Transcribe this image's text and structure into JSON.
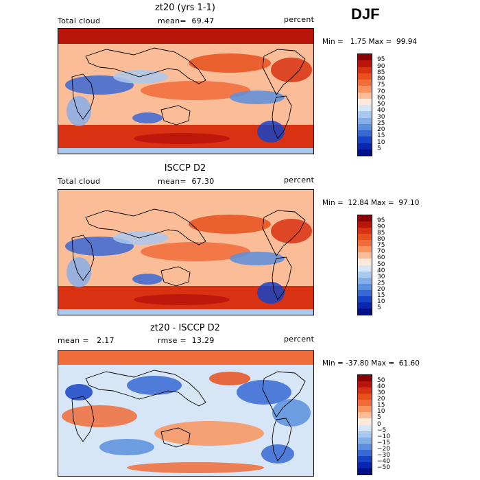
{
  "season": "DJF",
  "panels": [
    {
      "title": "zt20 (yrs 1-1)",
      "left_label": "Total cloud",
      "center_label": "mean=  69.47",
      "units": "percent",
      "minmax": "Min =   1.75 Max =  99.94",
      "colorbar": {
        "labels": [
          "95",
          "90",
          "85",
          "80",
          "75",
          "70",
          "60",
          "50",
          "40",
          "30",
          "25",
          "20",
          "15",
          "10",
          "5"
        ],
        "colors": [
          "#8b0000",
          "#b8140a",
          "#d83212",
          "#e8501c",
          "#f06c3a",
          "#f8935e",
          "#fbbd98",
          "#fde9d9",
          "#d6e6f7",
          "#aac9ee",
          "#86aee6",
          "#5b8fdd",
          "#3868d4",
          "#1843c6",
          "#0a26b0",
          "#001088"
        ]
      }
    },
    {
      "title": "ISCCP D2",
      "left_label": "Total cloud",
      "center_label": "mean=  67.30",
      "units": "percent",
      "minmax": "Min =  12.84 Max =  97.10",
      "colorbar": {
        "labels": [
          "95",
          "90",
          "85",
          "80",
          "75",
          "70",
          "60",
          "50",
          "40",
          "30",
          "25",
          "20",
          "15",
          "10",
          "5"
        ],
        "colors": [
          "#8b0000",
          "#b8140a",
          "#d83212",
          "#e8501c",
          "#f06c3a",
          "#f8935e",
          "#fbbd98",
          "#fde9d9",
          "#d6e6f7",
          "#aac9ee",
          "#86aee6",
          "#5b8fdd",
          "#3868d4",
          "#1843c6",
          "#0a26b0",
          "#001088"
        ]
      }
    },
    {
      "title": "zt20 - ISCCP D2",
      "left_label": "mean =   2.17",
      "center_label": "rmse =  13.29",
      "units": "percent",
      "minmax": "Min = -37.80 Max =  61.60",
      "colorbar": {
        "labels": [
          "50",
          "40",
          "30",
          "20",
          "15",
          "10",
          "5",
          "0",
          "−5",
          "−10",
          "−15",
          "−20",
          "−30",
          "−40",
          "−50"
        ],
        "colors": [
          "#8b0000",
          "#b8140a",
          "#d83212",
          "#e8501c",
          "#f06c3a",
          "#f8935e",
          "#fbbd98",
          "#fde9d9",
          "#d6e6f7",
          "#aac9ee",
          "#86aee6",
          "#5b8fdd",
          "#3868d4",
          "#1843c6",
          "#0a26b0",
          "#001088"
        ]
      }
    }
  ]
}
